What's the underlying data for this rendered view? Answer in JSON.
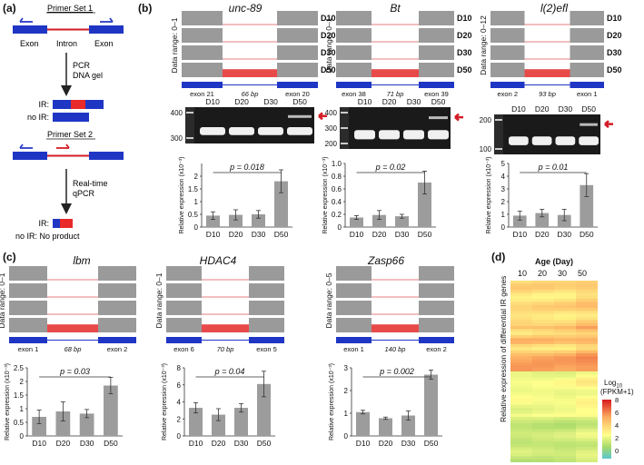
{
  "panel_labels": {
    "a": "(a)",
    "b": "(b)",
    "c": "(c)",
    "d": "(d)"
  },
  "schematic": {
    "primer_set_1": "Primer Set 1",
    "primer_set_2": "Primer Set 2",
    "exon_left": "Exon",
    "intron": "Intron",
    "exon_right": "Exon",
    "step1_line1": "PCR",
    "step1_line2": "DNA gel",
    "step2_line1": "Real-time",
    "step2_line2": "qPCR",
    "ir_label": "IR:",
    "no_ir_label": "no IR:",
    "ir_label2": "IR:",
    "no_ir_label2": "no IR: No product"
  },
  "genes": [
    {
      "name": "unc-89",
      "data_range": "Data range: 0–1",
      "ages": [
        "D10",
        "D20",
        "D30",
        "D50"
      ],
      "exon_left": "exon 21",
      "intron_len": "66 bp",
      "exon_right": "exon 20",
      "gel_ladder": [
        "400",
        "300"
      ],
      "p_value": "p = 0.018",
      "ylabel": "Relative expression (x10⁻³)"
    },
    {
      "name": "Bt",
      "data_range": "Data range: 0–1",
      "exon_left": "exon 38",
      "intron_len": "71 bp",
      "exon_right": "exon 39",
      "gel_ladder": [
        "400",
        "300",
        "200"
      ],
      "p_value": "p = 0.02",
      "ylabel": "Relative expression (x10⁻³)"
    },
    {
      "name": "l(2)efl",
      "data_range": "Data range: 0–12",
      "exon_left": "exon 2",
      "intron_len": "93 bp",
      "exon_right": "exon 1",
      "gel_ladder": [
        "200",
        "100"
      ],
      "p_value": "p = 0.01",
      "ylabel": "Relative expression (x10⁻³)"
    },
    {
      "name": "lbm",
      "data_range": "Data range: 0–1",
      "exon_left": "exon 1",
      "intron_len": "68 bp",
      "exon_right": "exon 2",
      "p_value": "p = 0.03",
      "ylabel": "Relative expression (x10⁻³)"
    },
    {
      "name": "HDAC4",
      "data_range": "Data range: 0–1",
      "exon_left": "exon 6",
      "intron_len": "70 bp",
      "exon_right": "exon 5",
      "p_value": "p = 0.04",
      "ylabel": "Relative expression (x10⁻³)"
    },
    {
      "name": "Zasp66",
      "data_range": "Data range: 0–5",
      "exon_left": "exon 1",
      "intron_len": "140 bp",
      "exon_right": "exon 2",
      "p_value": "p = 0.002",
      "ylabel": "Relative expression (x10⁻³)"
    }
  ],
  "heatmap": {
    "title": "Age (Day)",
    "ages": [
      "10",
      "20",
      "30",
      "50"
    ],
    "ylabel": "Relative expression of differential IR genes",
    "legend_title_1": "Log",
    "legend_title_sub": "10",
    "legend_title_2": "(FPKM+1)",
    "legend_ticks": [
      "8",
      "6",
      "4",
      "2",
      "0"
    ],
    "colors": {
      "high": "#d7191c",
      "mid": "#fdae61",
      "low_mid": "#ffff8c",
      "low": "#5bc8d0"
    }
  },
  "chart_data": [
    {
      "type": "bar",
      "title": "unc-89",
      "categories": [
        "D10",
        "D20",
        "D30",
        "D50"
      ],
      "values": [
        0.45,
        0.48,
        0.5,
        1.8
      ],
      "errors": [
        0.15,
        0.2,
        0.15,
        0.45
      ],
      "ylim": [
        0,
        2.5
      ],
      "yticks": [
        "0",
        "0.5",
        "1",
        "1.5",
        "2"
      ]
    },
    {
      "type": "bar",
      "title": "Bt",
      "categories": [
        "D10",
        "D20",
        "D30",
        "D50"
      ],
      "values": [
        0.15,
        0.19,
        0.17,
        0.7
      ],
      "errors": [
        0.03,
        0.07,
        0.03,
        0.18
      ],
      "ylim": [
        0,
        1
      ],
      "yticks": [
        "0",
        "0.2",
        "0.4",
        "0.6",
        "0.8",
        "1.0"
      ]
    },
    {
      "type": "bar",
      "title": "l(2)efl",
      "categories": [
        "D10",
        "D20",
        "D30",
        "D50"
      ],
      "values": [
        0.9,
        1.1,
        0.95,
        3.3
      ],
      "errors": [
        0.35,
        0.3,
        0.45,
        0.9
      ],
      "ylim": [
        0,
        5
      ],
      "yticks": [
        "0",
        "1",
        "2",
        "3",
        "4",
        "5"
      ]
    },
    {
      "type": "bar",
      "title": "lbm",
      "categories": [
        "D10",
        "D20",
        "D30",
        "D50"
      ],
      "values": [
        0.7,
        0.9,
        0.82,
        1.85
      ],
      "errors": [
        0.25,
        0.35,
        0.15,
        0.3
      ],
      "ylim": [
        0,
        2.5
      ],
      "yticks": [
        "0",
        "0.5",
        "1",
        "1.5",
        "2",
        "2.5"
      ]
    },
    {
      "type": "bar",
      "title": "HDAC4",
      "categories": [
        "D10",
        "D20",
        "D30",
        "D50"
      ],
      "values": [
        3.3,
        2.5,
        3.3,
        6.1
      ],
      "errors": [
        0.6,
        0.7,
        0.5,
        1.5
      ],
      "ylim": [
        0,
        8
      ],
      "yticks": [
        "0",
        "2",
        "4",
        "6",
        "8"
      ]
    },
    {
      "type": "bar",
      "title": "Zasp66",
      "categories": [
        "D10",
        "D20",
        "D30",
        "D50"
      ],
      "values": [
        1.05,
        0.78,
        0.9,
        2.7
      ],
      "errors": [
        0.08,
        0.05,
        0.2,
        0.2
      ],
      "ylim": [
        0,
        3
      ],
      "yticks": [
        "0",
        "1",
        "2",
        "3"
      ]
    }
  ]
}
